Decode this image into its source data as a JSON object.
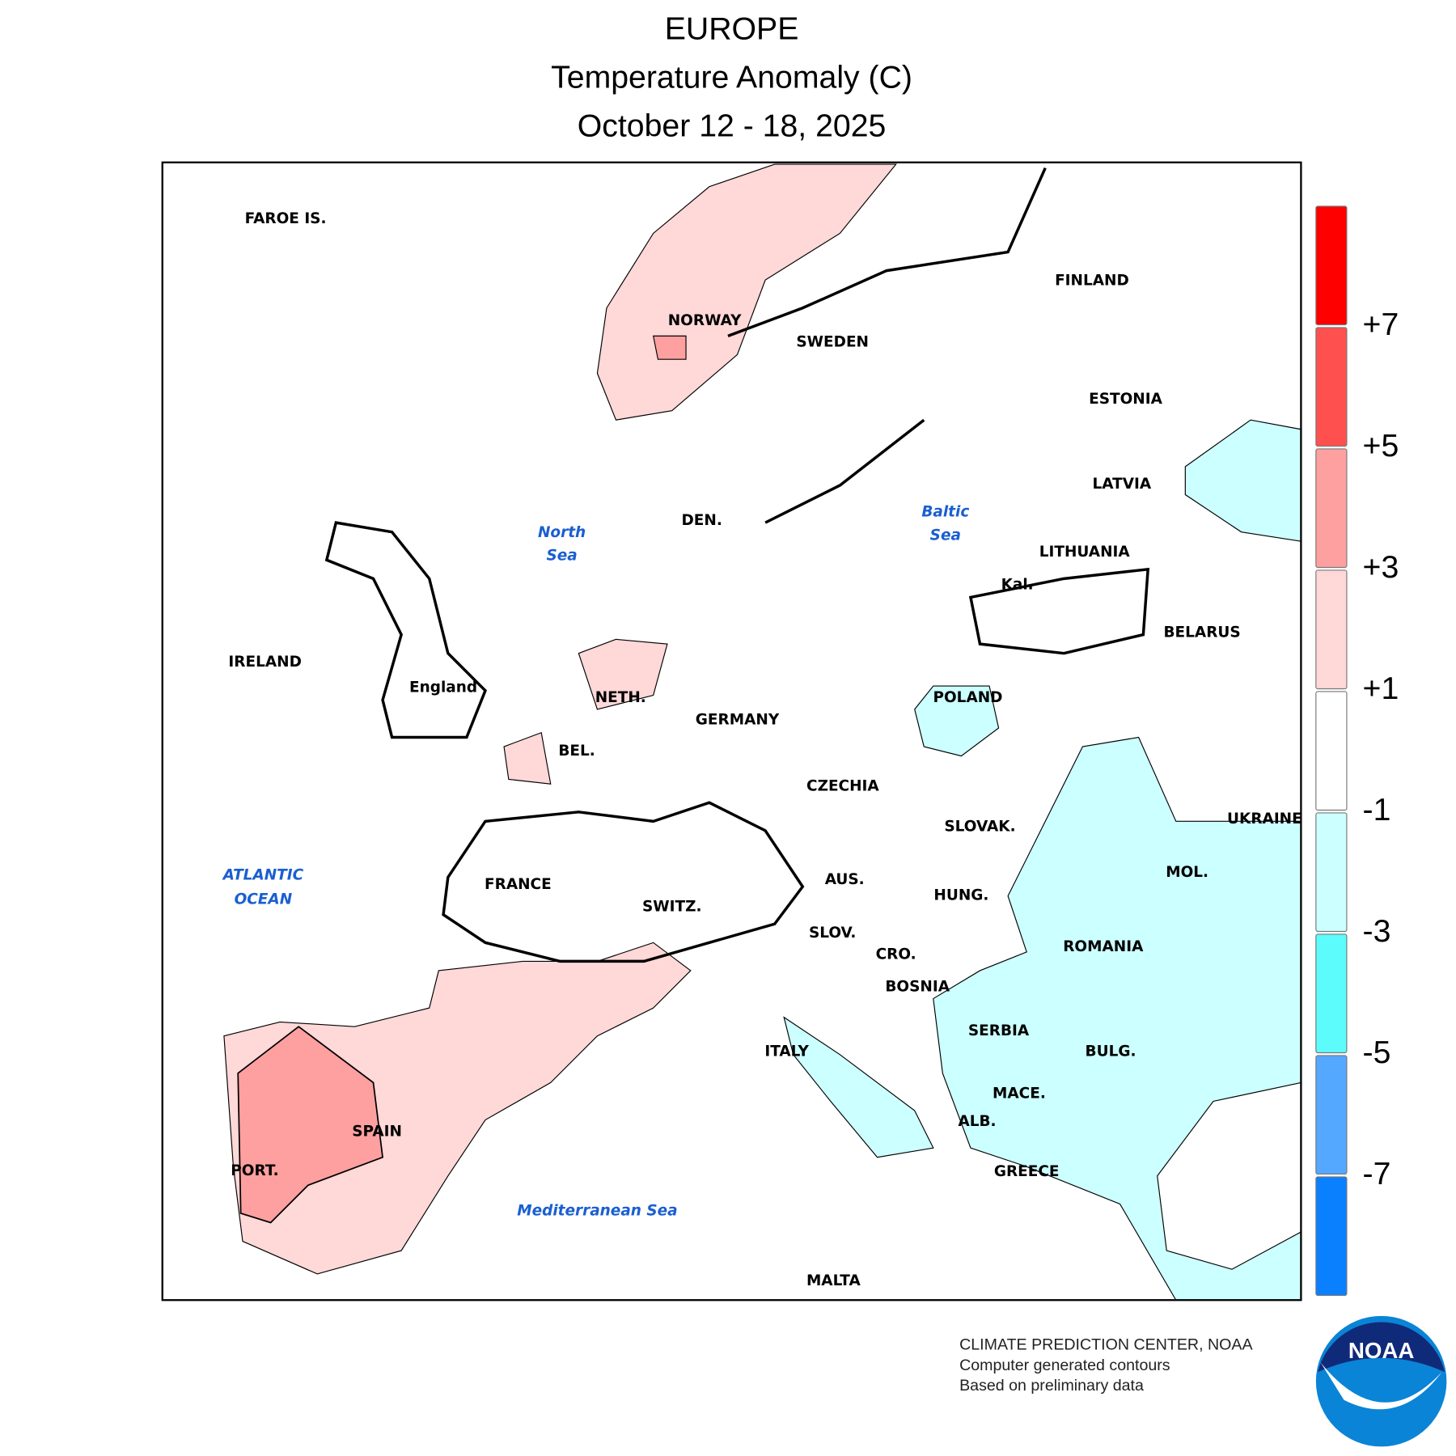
{
  "header": {
    "title": "EUROPE",
    "subtitle": "Temperature Anomaly (C)",
    "dates": "October 12 - 18, 2025"
  },
  "map": {
    "countries": [
      "FAROE IS.",
      "NORWAY",
      "SWEDEN",
      "FINLAND",
      "ESTONIA",
      "LATVIA",
      "LITHUANIA",
      "Kal.",
      "BELARUS",
      "POLAND",
      "DEN.",
      "NETH.",
      "GERMANY",
      "BEL.",
      "CZECHIA",
      "SLOVAK.",
      "UKRAINE",
      "MOL.",
      "FRANCE",
      "SWITZ.",
      "AUS.",
      "HUNG.",
      "SLOV.",
      "CRO.",
      "ROMANIA",
      "BOSNIA",
      "SERBIA",
      "ITALY",
      "BULG.",
      "MACE.",
      "ALB.",
      "GREECE",
      "SPAIN",
      "PORT.",
      "MALTA",
      "IRELAND",
      "England"
    ],
    "seas": [
      "North",
      "Sea",
      "Baltic",
      "Sea",
      "ATLANTIC",
      "OCEAN",
      "Mediterranean Sea"
    ]
  },
  "legend": {
    "colors": [
      "#ff0000",
      "#ff5050",
      "#ffa0a0",
      "#ffd8d8",
      "#ffffff",
      "#ccffff",
      "#5cfcfc",
      "#55a8ff",
      "#0a80ff"
    ],
    "labels": [
      "+7",
      "+5",
      "+3",
      "+1",
      "-1",
      "-3",
      "-5",
      "-7"
    ]
  },
  "footer": {
    "lines": [
      "CLIMATE PREDICTION CENTER, NOAA",
      "Computer generated contours",
      "Based on preliminary data"
    ],
    "logo": "NOAA"
  }
}
